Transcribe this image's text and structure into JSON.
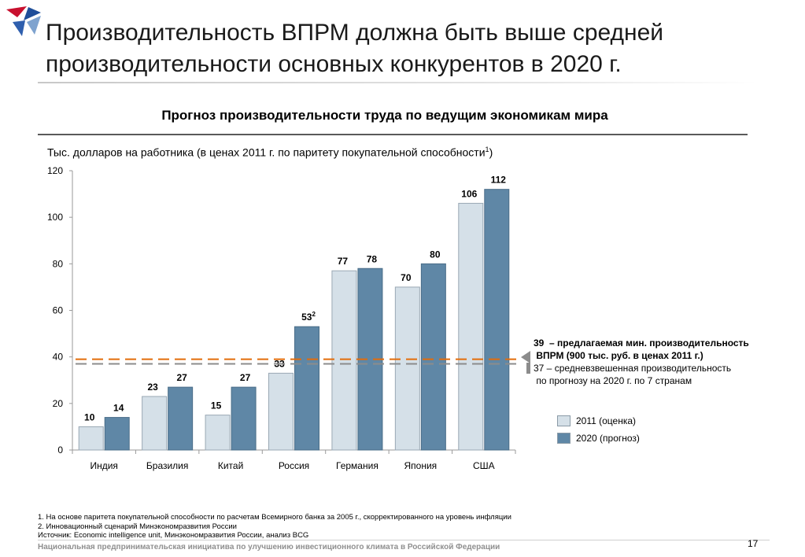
{
  "slide": {
    "title_line1": "Производительность ВПРМ должна быть выше средней",
    "title_line2": "производительности основных конкурентов в 2020 г.",
    "page_number": "17"
  },
  "chart_data": {
    "type": "bar",
    "title": "Прогноз производительности труда по ведущим экономикам мира",
    "ylabel": "Тыс. долларов на работника (в ценах 2011 г. по паритету покупательной способности",
    "ylabel_sup": "1",
    "ylabel_close": ")",
    "ylim": [
      0,
      120
    ],
    "yticks": [
      0,
      20,
      40,
      60,
      80,
      100,
      120
    ],
    "grid": false,
    "legend_position": "right",
    "categories": [
      "Индия",
      "Бразилия",
      "Китай",
      "Россия",
      "Германия",
      "Япония",
      "США"
    ],
    "series": [
      {
        "name": "2011 (оценка)",
        "color": "#d5e0e8",
        "values": [
          10,
          23,
          15,
          33,
          77,
          70,
          106
        ],
        "labels": [
          "10",
          "23",
          "15",
          "33",
          "77",
          "70",
          "106"
        ],
        "label_sups": [
          "",
          "",
          "",
          "",
          "",
          "",
          ""
        ]
      },
      {
        "name": "2020 (прогноз)",
        "color": "#5f87a6",
        "values": [
          14,
          27,
          27,
          53,
          78,
          80,
          112
        ],
        "labels": [
          "14",
          "27",
          "27",
          "53",
          "78",
          "80",
          "112"
        ],
        "label_sups": [
          "",
          "",
          "",
          "2",
          "",
          "",
          ""
        ]
      }
    ],
    "reference_lines": [
      {
        "value": 39,
        "color": "#e36c0a"
      },
      {
        "value": 37,
        "color": "#8c8c8c"
      }
    ]
  },
  "annotation": {
    "line1": "39  – предлагаемая мин. производительность",
    "line2": " ВПРМ (900 тыс. руб. в ценах 2011 г.)",
    "line3": "37 – средневзвешенная производительность",
    "line4": " по прогнозу на 2020 г. по 7 странам"
  },
  "footnotes": {
    "note1": "1. На основе паритета покупательной способности по расчетам Всемирного банка за 2005 г., скорректированного на уровень инфляции",
    "note2": "2. Инновационный сценарий Минэкономразвития России",
    "source": "Источник: Economic intelligence unit, Минэкономразвития России, анализ BCG"
  },
  "footer": {
    "org": "Национальная предпринимательская инициатива по улучшению инвестиционного климата в Российской Федерации"
  },
  "colors": {
    "bar_2011": "#d5e0e8",
    "bar_2020": "#5f87a6",
    "line_39": "#e36c0a",
    "line_37": "#8c8c8c",
    "logo_red": "#c8102e",
    "logo_blue": "#1f4e99"
  }
}
